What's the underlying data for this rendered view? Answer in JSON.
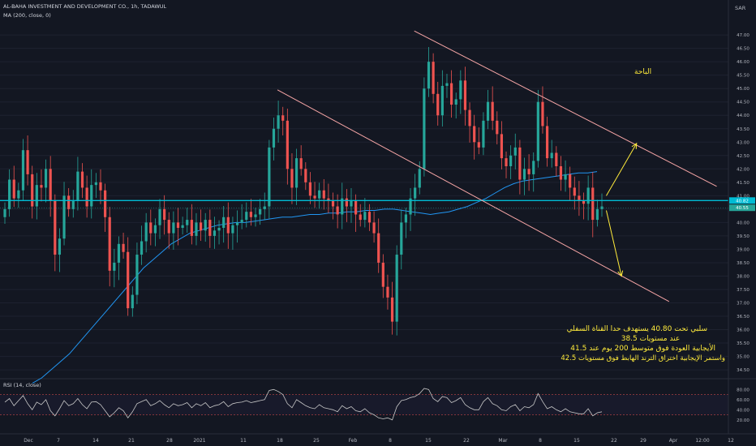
{
  "header": {
    "symbol_line": "AL-BAHA INVESTMENT AND DEVELOPMENT CO., 1h, TADAWUL",
    "ma_line": "MA (200, close, 0)",
    "rsi_line": "RSI (14, close)",
    "currency": "SAR"
  },
  "annotations": {
    "title": "الباحة",
    "line1": "سلبي تحت 40.80 يستهدف حدا القناة السفلي",
    "line2": "عند مستويات 38.5",
    "line3": "الأيجابية العودة فوق متوسط 200 يوم عند 41.5",
    "line4": "واستمر الإيجابية اختراق الترند الهابط فوق مستويات 42.5"
  },
  "colors": {
    "background": "#131722",
    "grid": "#1e2230",
    "candle_up": "#26a69a",
    "candle_down": "#ef5350",
    "ma_line": "#2196f3",
    "horizontal_line": "#00bcd4",
    "trend_lines": "#f7a6a6",
    "arrows": "#ffeb3b",
    "rsi_line": "#c8c8c8",
    "rsi_bands": "#ef5350",
    "axis_text": "#b2b5be"
  },
  "chart_data": {
    "type": "candlestick",
    "yaxis": {
      "ticks": [
        34.5,
        35.0,
        35.5,
        36.0,
        36.5,
        37.0,
        37.5,
        38.0,
        38.5,
        39.0,
        39.5,
        40.0,
        40.5,
        41.0,
        41.5,
        42.0,
        42.5,
        43.0,
        43.5,
        44.0,
        44.5,
        45.0,
        45.5,
        46.0,
        46.5,
        47.0
      ],
      "range": [
        34.2,
        47.7
      ]
    },
    "xaxis": {
      "labels": [
        "Dec",
        "7",
        "14",
        "21",
        "28",
        "2021",
        "11",
        "18",
        "25",
        "Feb",
        "8",
        "15",
        "22",
        "Mar",
        "8",
        "15",
        "22",
        "29",
        "Apr",
        "12:00",
        "12"
      ]
    },
    "price_labels": [
      {
        "value": 40.82,
        "text": "40.82",
        "color": "#00bcd4"
      },
      {
        "value": 40.55,
        "text": "40.55",
        "color": "#26a69a"
      }
    ],
    "horizontal_line": {
      "value": 40.82
    },
    "close_series": [
      40.5,
      41.6,
      40.9,
      41.2,
      42.7,
      41.8,
      40.6,
      41.4,
      41.3,
      42.0,
      40.8,
      38.8,
      39.4,
      41.0,
      40.5,
      40.8,
      41.9,
      41.3,
      40.6,
      41.4,
      41.5,
      41.2,
      40.2,
      38.2,
      38.5,
      39.2,
      38.9,
      36.8,
      37.3,
      38.8,
      39.3,
      40.0,
      39.6,
      39.9,
      40.5,
      40.1,
      39.6,
      40.0,
      39.8,
      39.9,
      40.1,
      39.5,
      40.0,
      39.7,
      40.1,
      39.5,
      39.7,
      39.8,
      40.2,
      39.6,
      39.9,
      40.0,
      40.1,
      40.4,
      40.2,
      40.3,
      40.5,
      40.6,
      42.8,
      43.5,
      44.0,
      43.8,
      42.0,
      41.3,
      42.4,
      42.0,
      41.5,
      41.0,
      40.9,
      41.2,
      40.9,
      40.8,
      40.6,
      40.3,
      40.9,
      40.6,
      40.8,
      40.3,
      40.1,
      40.4,
      40.0,
      39.6,
      38.5,
      37.6,
      37.2,
      36.3,
      38.8,
      40.0,
      40.3,
      40.9,
      41.3,
      42.0,
      45.0,
      46.0,
      44.8,
      44.0,
      45.1,
      45.2,
      44.4,
      44.6,
      45.3,
      44.2,
      43.6,
      43.0,
      42.8,
      43.8,
      44.5,
      43.8,
      43.3,
      42.4,
      42.1,
      42.5,
      42.8,
      41.6,
      42.0,
      41.8,
      42.3,
      44.5,
      43.6,
      42.4,
      42.6,
      42.1,
      41.6,
      41.8,
      41.3,
      41.0,
      40.8,
      40.7,
      41.3,
      40.1,
      40.5,
      40.6
    ],
    "ma_series": [
      34.0,
      34.2,
      34.5,
      34.8,
      35.1,
      35.5,
      35.9,
      36.3,
      36.7,
      37.1,
      37.5,
      37.9,
      38.3,
      38.6,
      38.9,
      39.2,
      39.4,
      39.6,
      39.7,
      39.8,
      39.9,
      39.95,
      40.0,
      40.0,
      40.05,
      40.1,
      40.15,
      40.2,
      40.2,
      40.25,
      40.3,
      40.3,
      40.35,
      40.35,
      40.4,
      40.4,
      40.45,
      40.45,
      40.5,
      40.5,
      40.45,
      40.4,
      40.35,
      40.3,
      40.35,
      40.4,
      40.5,
      40.6,
      40.75,
      40.9,
      41.1,
      41.3,
      41.45,
      41.55,
      41.6,
      41.65,
      41.7,
      41.75,
      41.8,
      41.85,
      41.85,
      41.9
    ],
    "trend_lines": [
      {
        "name": "upper",
        "from": [
          0.367,
          44.95
        ],
        "to": [
          0.948,
          41.35
        ]
      },
      {
        "name": "middle",
        "from": [
          0.367,
          44.95
        ],
        "to": [
          0.885,
          37.05
        ],
        "note": "lower trend"
      },
      {
        "name": "top",
        "from": [
          0.548,
          47.15
        ],
        "to": [
          0.948,
          41.35
        ]
      }
    ],
    "arrows": [
      {
        "from": [
          0.802,
          41.0
        ],
        "to": [
          0.842,
          42.95
        ]
      },
      {
        "from": [
          0.802,
          40.45
        ],
        "to": [
          0.822,
          38.0
        ]
      }
    ],
    "rsi": {
      "ticks": [
        20.0,
        40.0,
        60.0,
        80.0
      ],
      "upper_band": 70,
      "lower_band": 30,
      "values": [
        55,
        62,
        48,
        58,
        68,
        52,
        40,
        55,
        50,
        60,
        38,
        28,
        42,
        58,
        48,
        52,
        62,
        50,
        42,
        55,
        56,
        50,
        38,
        26,
        34,
        44,
        38,
        24,
        36,
        52,
        56,
        60,
        48,
        52,
        58,
        50,
        44,
        52,
        48,
        50,
        54,
        44,
        52,
        48,
        54,
        44,
        48,
        50,
        56,
        46,
        52,
        54,
        55,
        58,
        54,
        56,
        58,
        60,
        78,
        80,
        76,
        70,
        52,
        44,
        60,
        54,
        48,
        44,
        42,
        50,
        44,
        42,
        40,
        36,
        48,
        42,
        46,
        38,
        36,
        42,
        34,
        30,
        24,
        22,
        24,
        20,
        46,
        58,
        60,
        64,
        66,
        72,
        82,
        80,
        62,
        56,
        66,
        64,
        54,
        58,
        64,
        50,
        44,
        40,
        40,
        56,
        64,
        52,
        48,
        40,
        38,
        46,
        50,
        38,
        46,
        44,
        50,
        72,
        56,
        42,
        46,
        40,
        36,
        42,
        36,
        34,
        32,
        32,
        42,
        28,
        34,
        36
      ]
    }
  }
}
